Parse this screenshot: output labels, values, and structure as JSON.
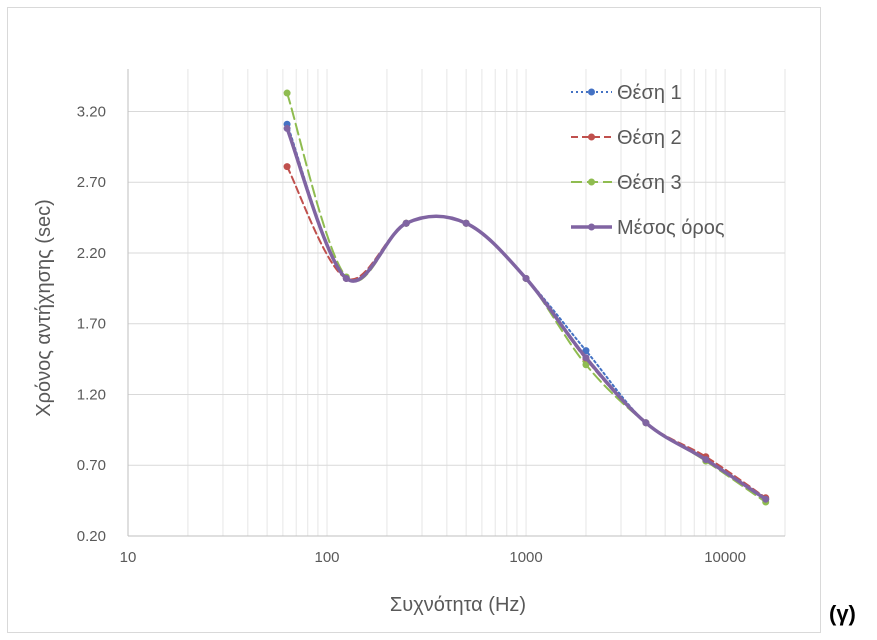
{
  "chart_data": {
    "type": "line",
    "title": "",
    "xlabel": "Συχνότητα (Hz)",
    "ylabel": "Χρόνος αντήχησης (sec)",
    "x_scale": "log",
    "xlim": [
      10,
      20000
    ],
    "ylim": [
      0.2,
      3.5
    ],
    "x_ticks": [
      10,
      100,
      1000,
      10000
    ],
    "x_tick_labels": [
      "10",
      "100",
      "1000",
      "10000"
    ],
    "y_ticks": [
      0.2,
      0.7,
      1.2,
      1.7,
      2.2,
      2.7,
      3.2
    ],
    "y_tick_labels": [
      "0.20",
      "0.70",
      "1.20",
      "1.70",
      "2.20",
      "2.70",
      "3.20"
    ],
    "grid": {
      "horizontal_major": true,
      "vertical_minor": true
    },
    "legend_position": "top-right",
    "x": [
      63,
      125,
      250,
      500,
      1000,
      2000,
      4000,
      8000,
      16000
    ],
    "series": [
      {
        "name": "Θέση 1",
        "color": "#4472c4",
        "style": "dotted",
        "values": [
          3.11,
          2.02,
          2.41,
          2.41,
          2.02,
          1.51,
          1.0,
          0.74,
          0.46
        ]
      },
      {
        "name": "Θέση 2",
        "color": "#c0504d",
        "style": "dashed",
        "values": [
          2.81,
          2.02,
          2.41,
          2.41,
          2.02,
          1.45,
          1.0,
          0.76,
          0.47
        ]
      },
      {
        "name": "Θέση 3",
        "color": "#8fbc50",
        "style": "longdash",
        "values": [
          3.33,
          2.03,
          2.41,
          2.41,
          2.02,
          1.41,
          1.0,
          0.73,
          0.44
        ]
      },
      {
        "name": "Μέσος όρος",
        "color": "#8064a2",
        "style": "solid",
        "values": [
          3.08,
          2.02,
          2.41,
          2.41,
          2.02,
          1.46,
          1.0,
          0.74,
          0.46
        ]
      }
    ]
  },
  "caption": "(γ)"
}
